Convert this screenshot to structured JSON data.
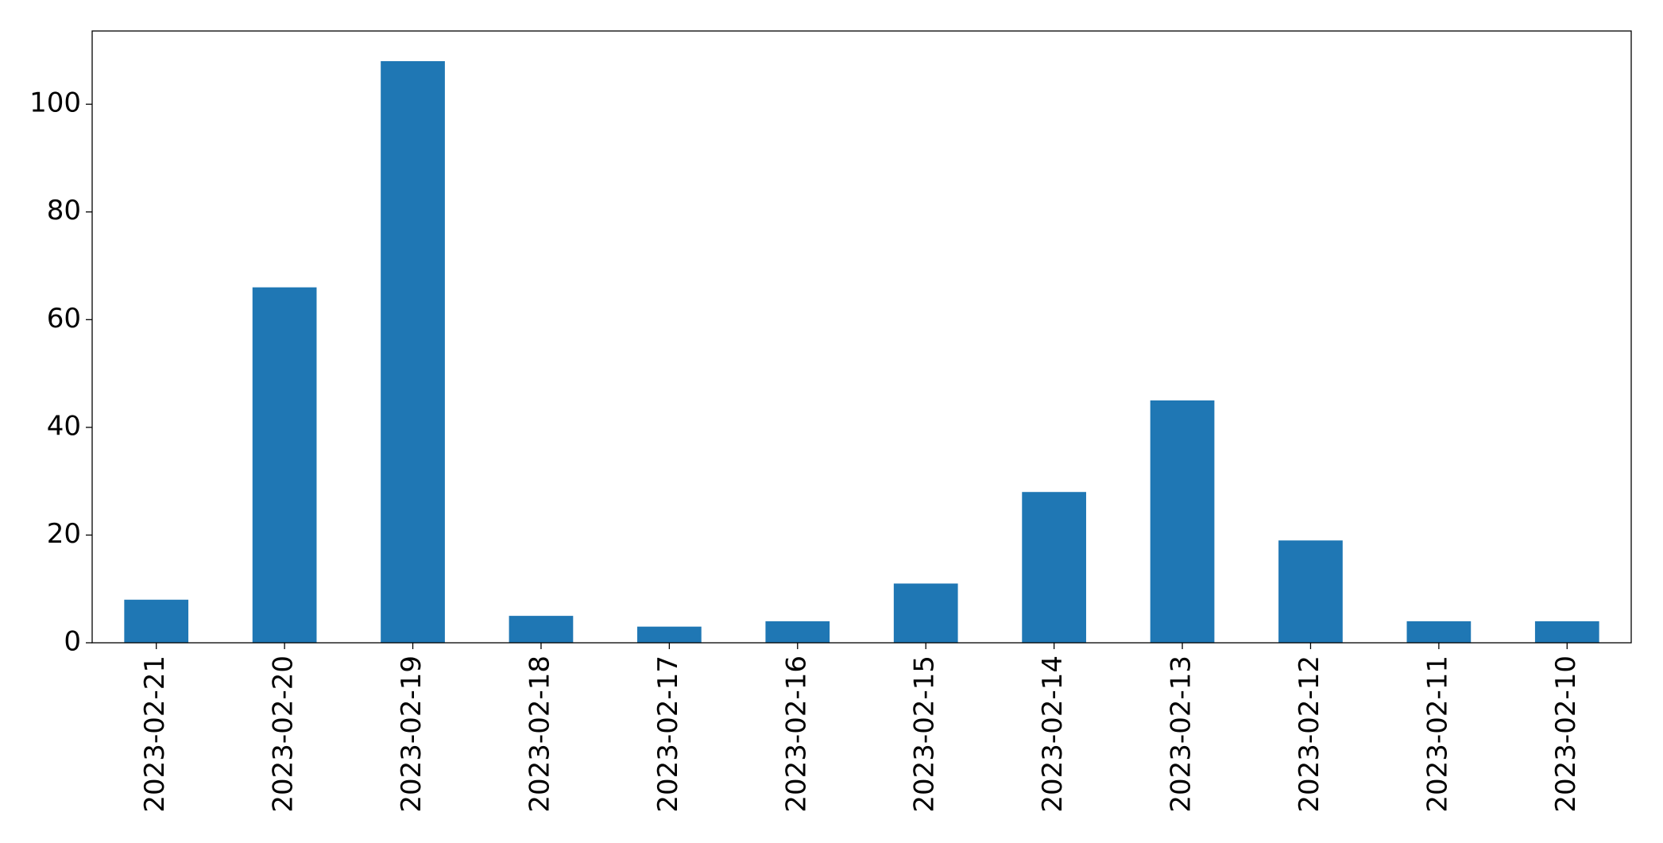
{
  "chart_data": {
    "type": "bar",
    "categories": [
      "2023-02-21",
      "2023-02-20",
      "2023-02-19",
      "2023-02-18",
      "2023-02-17",
      "2023-02-16",
      "2023-02-15",
      "2023-02-14",
      "2023-02-13",
      "2023-02-12",
      "2023-02-11",
      "2023-02-10"
    ],
    "values": [
      8,
      66,
      108,
      5,
      3,
      4,
      11,
      28,
      45,
      19,
      4,
      4
    ],
    "color": "#1f77b4",
    "ylim": [
      0,
      113.6
    ],
    "yticks": [
      0,
      20,
      40,
      60,
      80,
      100
    ],
    "grid": false
  }
}
